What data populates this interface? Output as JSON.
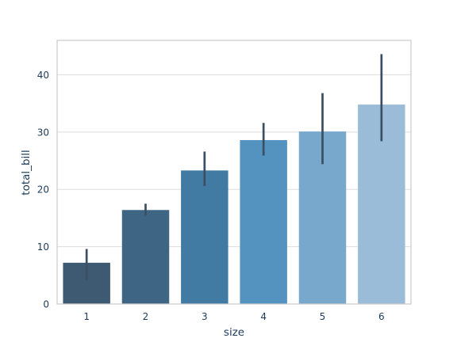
{
  "chart_data": {
    "type": "bar",
    "title": "",
    "xlabel": "size",
    "ylabel": "total_bill",
    "categories": [
      "1",
      "2",
      "3",
      "4",
      "5",
      "6"
    ],
    "values": [
      7.2,
      16.4,
      23.3,
      28.6,
      30.1,
      34.8
    ],
    "error_bars": [
      {
        "low": 4.2,
        "high": 9.6
      },
      {
        "low": 15.4,
        "high": 17.5
      },
      {
        "low": 20.6,
        "high": 26.6
      },
      {
        "low": 25.9,
        "high": 31.6
      },
      {
        "low": 24.4,
        "high": 36.8
      },
      {
        "low": 28.4,
        "high": 43.6
      }
    ],
    "ylim": [
      0,
      46
    ],
    "yticks": [
      0,
      10,
      20,
      30,
      40
    ],
    "grid": "horizontal",
    "colors": {
      "bars": [
        "#3e5972",
        "#3f6585",
        "#417aa3",
        "#5492c0",
        "#78a8cc",
        "#9bbcd8"
      ],
      "error_bar": "#3a4f63",
      "text": "#1c3a5a",
      "grid": "#dddddd",
      "frame": "#cccccc"
    }
  }
}
